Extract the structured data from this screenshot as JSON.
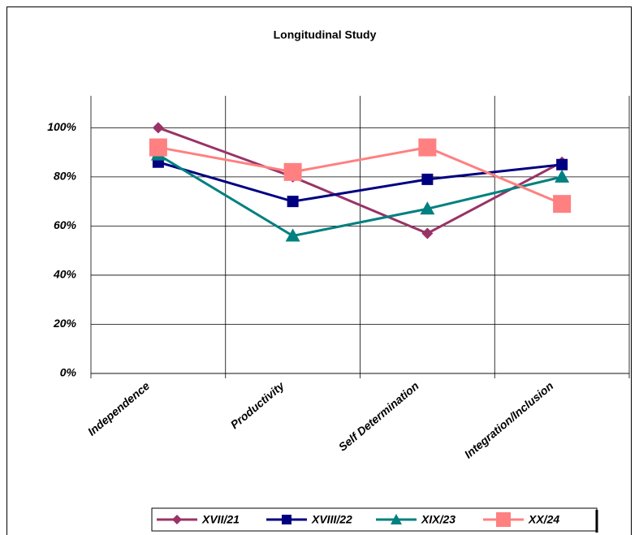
{
  "chart_data": {
    "type": "line",
    "title": "Longitudinal Study",
    "categories": [
      "Independence",
      "Productivity",
      "Self Determination",
      "Integration/Inclusion"
    ],
    "series": [
      {
        "name": "XVII/21",
        "color": "#993366",
        "marker": "diamond",
        "values": [
          100,
          80,
          57,
          86
        ]
      },
      {
        "name": "XVIII/22",
        "color": "#000080",
        "marker": "square",
        "values": [
          86,
          70,
          79,
          85
        ]
      },
      {
        "name": "XIX/23",
        "color": "#008080",
        "marker": "triangle",
        "values": [
          89,
          56,
          67,
          80
        ]
      },
      {
        "name": "XX/24",
        "color": "#FF8080",
        "marker": "bigsquare",
        "values": [
          92,
          82,
          92,
          69
        ]
      }
    ],
    "ylim": [
      0,
      113
    ],
    "yticks": [
      {
        "value": 0,
        "label": "0%"
      },
      {
        "value": 20,
        "label": "20%"
      },
      {
        "value": 40,
        "label": "40%"
      },
      {
        "value": 60,
        "label": "60%"
      },
      {
        "value": 80,
        "label": "80%"
      },
      {
        "value": 100,
        "label": "100%"
      }
    ],
    "grid": true,
    "legend": "bottom"
  }
}
